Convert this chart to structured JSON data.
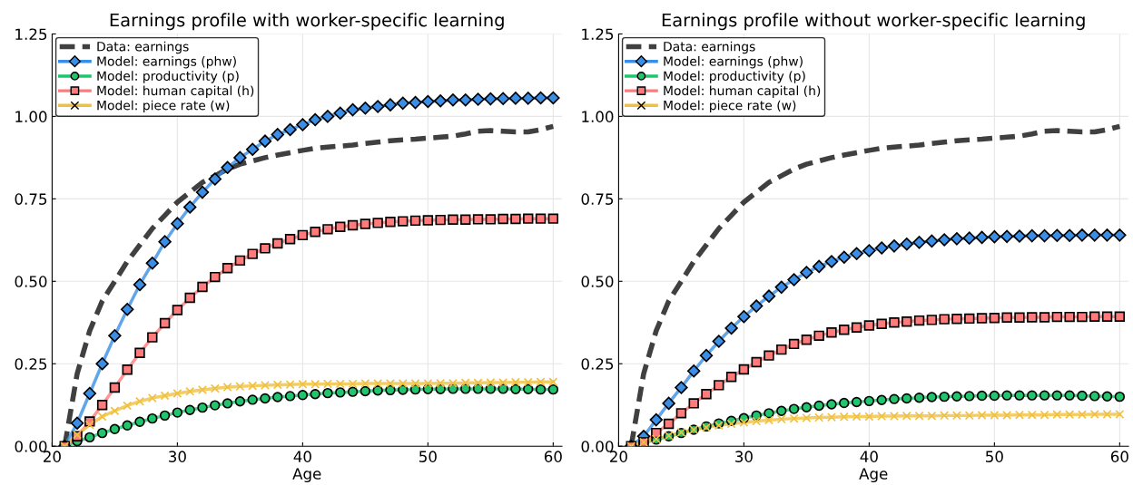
{
  "chart_data": [
    {
      "type": "line",
      "title": "Earnings profile with worker-specific learning",
      "xlabel": "Age",
      "x": [
        21,
        22,
        23,
        24,
        25,
        26,
        27,
        28,
        29,
        30,
        31,
        32,
        33,
        34,
        35,
        36,
        37,
        38,
        39,
        40,
        41,
        42,
        43,
        44,
        45,
        46,
        47,
        48,
        49,
        50,
        51,
        52,
        53,
        54,
        55,
        56,
        57,
        58,
        59,
        60
      ],
      "xlim": [
        20,
        60.7
      ],
      "xticks": [
        20,
        30,
        40,
        50,
        60
      ],
      "ylim": [
        0,
        1.25
      ],
      "yticks": [
        {
          "value": 0,
          "label": "0.00"
        },
        {
          "value": 0.25,
          "label": "0.25"
        },
        {
          "value": 0.5,
          "label": "0.50"
        },
        {
          "value": 0.75,
          "label": "0.75"
        },
        {
          "value": 1.0,
          "label": "1.00"
        },
        {
          "value": 1.25,
          "label": "1.25"
        }
      ],
      "grid": true,
      "legend": "top left",
      "series": [
        {
          "name": "Data: earnings",
          "color": "#404040",
          "line_style": "dashed",
          "marker": "none",
          "values": [
            0,
            0.22,
            0.35,
            0.44,
            0.5,
            0.56,
            0.61,
            0.66,
            0.7,
            0.74,
            0.77,
            0.8,
            0.82,
            0.84,
            0.855,
            0.865,
            0.875,
            0.883,
            0.89,
            0.897,
            0.903,
            0.907,
            0.91,
            0.913,
            0.918,
            0.922,
            0.926,
            0.929,
            0.931,
            0.934,
            0.937,
            0.94,
            0.947,
            0.955,
            0.957,
            0.955,
            0.953,
            0.953,
            0.96,
            0.97
          ]
        },
        {
          "name": "Model: earnings (phw)",
          "color": "#3a8ee6",
          "line_style": "solid",
          "marker": "diamond",
          "values": [
            0,
            0.07,
            0.16,
            0.25,
            0.335,
            0.415,
            0.49,
            0.555,
            0.62,
            0.675,
            0.725,
            0.77,
            0.81,
            0.845,
            0.875,
            0.9,
            0.925,
            0.945,
            0.96,
            0.975,
            0.99,
            1.0,
            1.01,
            1.02,
            1.025,
            1.03,
            1.035,
            1.04,
            1.042,
            1.045,
            1.047,
            1.05,
            1.05,
            1.052,
            1.053,
            1.054,
            1.055,
            1.055,
            1.056,
            1.056
          ]
        },
        {
          "name": "Model: productivity (p)",
          "color": "#22c46e",
          "line_style": "solid",
          "marker": "circle",
          "values": [
            0,
            0.015,
            0.027,
            0.04,
            0.052,
            0.063,
            0.074,
            0.084,
            0.093,
            0.102,
            0.11,
            0.117,
            0.124,
            0.13,
            0.136,
            0.141,
            0.145,
            0.149,
            0.152,
            0.155,
            0.158,
            0.161,
            0.163,
            0.165,
            0.167,
            0.169,
            0.17,
            0.171,
            0.172,
            0.173,
            0.173,
            0.174,
            0.174,
            0.174,
            0.174,
            0.174,
            0.173,
            0.173,
            0.172,
            0.172
          ]
        },
        {
          "name": "Model: human capital (h)",
          "color": "#ff7b7b",
          "line_style": "solid",
          "marker": "square",
          "values": [
            0,
            0.03,
            0.075,
            0.125,
            0.178,
            0.232,
            0.283,
            0.33,
            0.373,
            0.413,
            0.45,
            0.483,
            0.513,
            0.54,
            0.563,
            0.583,
            0.6,
            0.615,
            0.628,
            0.64,
            0.65,
            0.658,
            0.665,
            0.67,
            0.674,
            0.677,
            0.68,
            0.682,
            0.684,
            0.685,
            0.686,
            0.687,
            0.687,
            0.688,
            0.688,
            0.689,
            0.689,
            0.69,
            0.69,
            0.69
          ]
        },
        {
          "name": "Model: piece rate (w)",
          "color": "#f0c040",
          "line_style": "solid",
          "marker": "cross",
          "values": [
            0,
            0.035,
            0.065,
            0.09,
            0.107,
            0.123,
            0.136,
            0.146,
            0.153,
            0.16,
            0.166,
            0.171,
            0.175,
            0.179,
            0.181,
            0.183,
            0.185,
            0.186,
            0.187,
            0.188,
            0.188,
            0.189,
            0.189,
            0.189,
            0.19,
            0.19,
            0.19,
            0.19,
            0.19,
            0.19,
            0.191,
            0.191,
            0.192,
            0.192,
            0.193,
            0.193,
            0.194,
            0.194,
            0.195,
            0.195
          ]
        }
      ]
    },
    {
      "type": "line",
      "title": "Earnings profile without worker-specific learning",
      "xlabel": "Age",
      "x": [
        21,
        22,
        23,
        24,
        25,
        26,
        27,
        28,
        29,
        30,
        31,
        32,
        33,
        34,
        35,
        36,
        37,
        38,
        39,
        40,
        41,
        42,
        43,
        44,
        45,
        46,
        47,
        48,
        49,
        50,
        51,
        52,
        53,
        54,
        55,
        56,
        57,
        58,
        59,
        60
      ],
      "xlim": [
        20,
        60.7
      ],
      "xticks": [
        20,
        30,
        40,
        50,
        60
      ],
      "ylim": [
        0,
        1.25
      ],
      "yticks": [
        {
          "value": 0,
          "label": "0.00"
        },
        {
          "value": 0.25,
          "label": "0.25"
        },
        {
          "value": 0.5,
          "label": "0.50"
        },
        {
          "value": 0.75,
          "label": "0.75"
        },
        {
          "value": 1.0,
          "label": "1.00"
        },
        {
          "value": 1.25,
          "label": "1.25"
        }
      ],
      "grid": true,
      "legend": "top left",
      "series": [
        {
          "name": "Data: earnings",
          "color": "#404040",
          "line_style": "dashed",
          "marker": "none",
          "values": [
            0,
            0.22,
            0.35,
            0.44,
            0.5,
            0.56,
            0.61,
            0.66,
            0.7,
            0.74,
            0.77,
            0.8,
            0.82,
            0.84,
            0.855,
            0.865,
            0.875,
            0.883,
            0.89,
            0.897,
            0.903,
            0.907,
            0.91,
            0.913,
            0.918,
            0.922,
            0.926,
            0.929,
            0.931,
            0.934,
            0.937,
            0.94,
            0.947,
            0.955,
            0.957,
            0.955,
            0.953,
            0.953,
            0.96,
            0.97
          ]
        },
        {
          "name": "Model: earnings (phw)",
          "color": "#3a8ee6",
          "line_style": "solid",
          "marker": "diamond",
          "values": [
            0,
            0.03,
            0.08,
            0.13,
            0.178,
            0.228,
            0.275,
            0.318,
            0.358,
            0.393,
            0.425,
            0.455,
            0.482,
            0.505,
            0.527,
            0.545,
            0.56,
            0.573,
            0.584,
            0.593,
            0.601,
            0.607,
            0.613,
            0.618,
            0.622,
            0.626,
            0.629,
            0.631,
            0.633,
            0.635,
            0.636,
            0.637,
            0.638,
            0.638,
            0.639,
            0.639,
            0.64,
            0.64,
            0.64,
            0.64
          ]
        },
        {
          "name": "Model: productivity (p)",
          "color": "#22c46e",
          "line_style": "solid",
          "marker": "circle",
          "values": [
            0,
            0.01,
            0.02,
            0.03,
            0.04,
            0.05,
            0.06,
            0.069,
            0.077,
            0.085,
            0.093,
            0.1,
            0.107,
            0.113,
            0.118,
            0.123,
            0.127,
            0.131,
            0.134,
            0.137,
            0.14,
            0.143,
            0.145,
            0.147,
            0.149,
            0.15,
            0.151,
            0.152,
            0.153,
            0.153,
            0.154,
            0.154,
            0.154,
            0.154,
            0.154,
            0.154,
            0.153,
            0.152,
            0.151,
            0.15
          ]
        },
        {
          "name": "Model: human capital (h)",
          "color": "#ff7b7b",
          "line_style": "solid",
          "marker": "square",
          "values": [
            0,
            0.012,
            0.04,
            0.068,
            0.1,
            0.13,
            0.158,
            0.185,
            0.21,
            0.233,
            0.255,
            0.275,
            0.293,
            0.31,
            0.323,
            0.335,
            0.345,
            0.353,
            0.36,
            0.366,
            0.371,
            0.375,
            0.378,
            0.381,
            0.383,
            0.385,
            0.386,
            0.387,
            0.388,
            0.389,
            0.39,
            0.39,
            0.391,
            0.391,
            0.392,
            0.392,
            0.392,
            0.393,
            0.393,
            0.393
          ]
        },
        {
          "name": "Model: piece rate (w)",
          "color": "#f0c040",
          "line_style": "solid",
          "marker": "cross",
          "values": [
            0,
            0.012,
            0.022,
            0.032,
            0.042,
            0.05,
            0.057,
            0.063,
            0.068,
            0.072,
            0.076,
            0.079,
            0.082,
            0.084,
            0.086,
            0.087,
            0.088,
            0.089,
            0.09,
            0.09,
            0.091,
            0.091,
            0.092,
            0.092,
            0.092,
            0.093,
            0.093,
            0.093,
            0.094,
            0.094,
            0.094,
            0.095,
            0.095,
            0.095,
            0.096,
            0.096,
            0.096,
            0.097,
            0.097,
            0.097
          ]
        }
      ]
    }
  ]
}
